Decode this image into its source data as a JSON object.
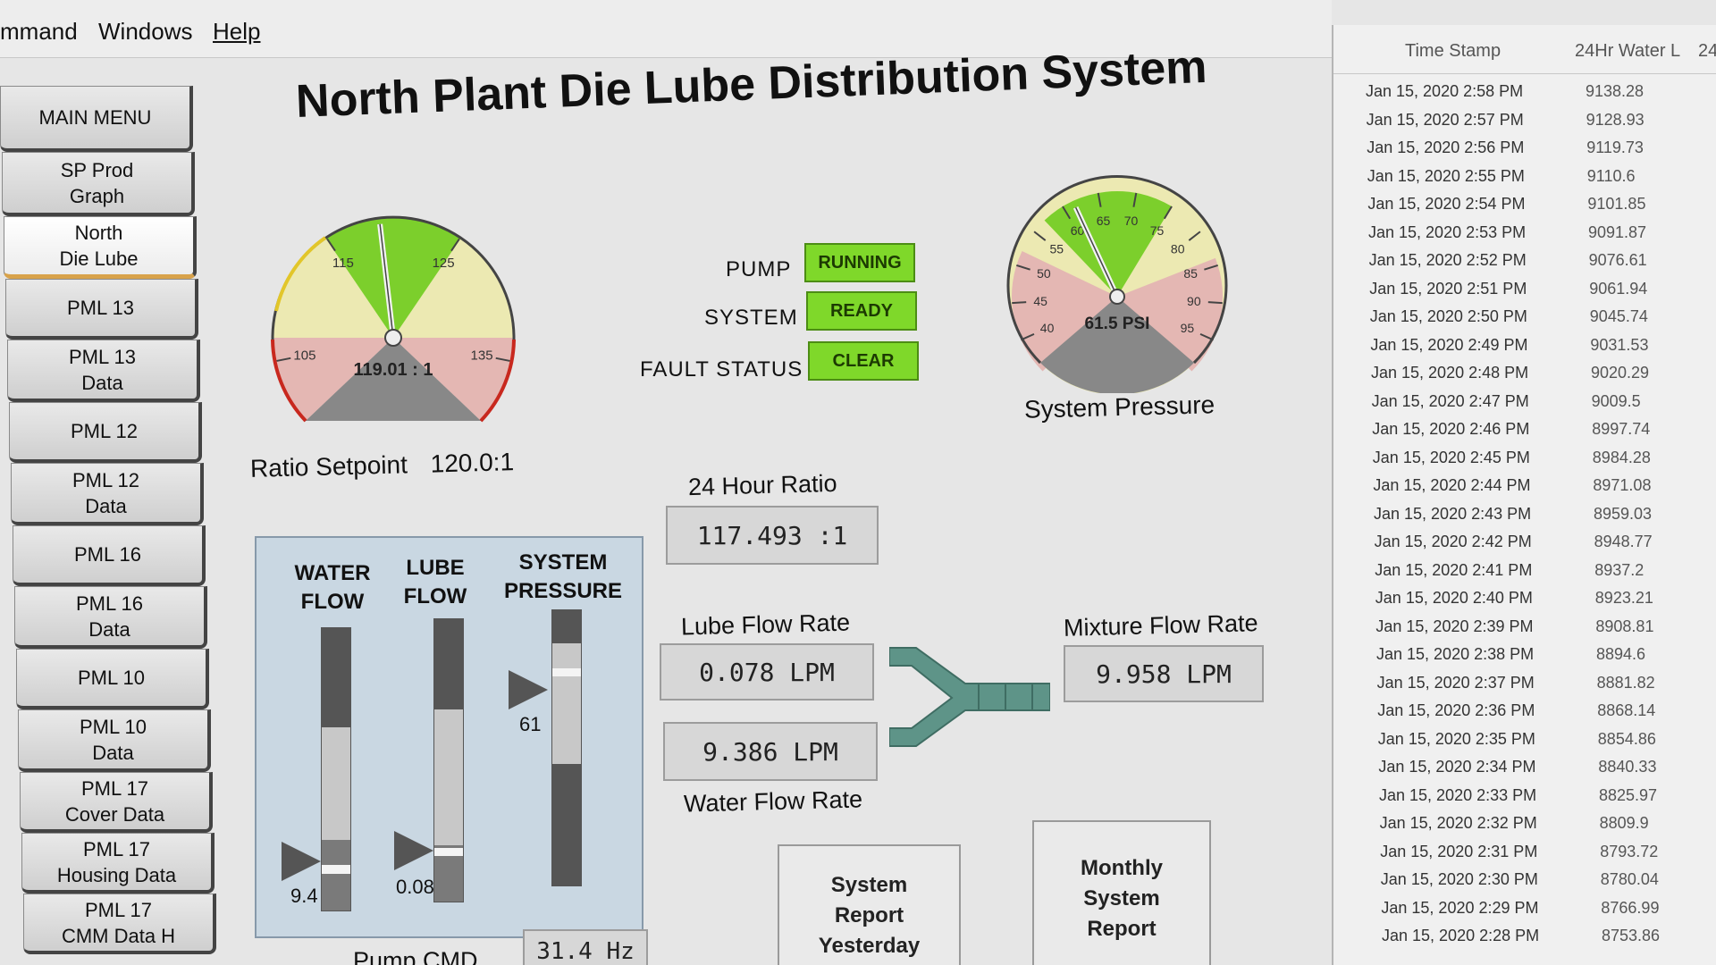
{
  "menu": {
    "command": "mmand",
    "windows": "Windows",
    "help": "Help"
  },
  "sidebar": {
    "items": [
      {
        "label": "MAIN MENU"
      },
      {
        "label": "SP Prod\nGraph"
      },
      {
        "label": "North\nDie Lube"
      },
      {
        "label": "PML 13"
      },
      {
        "label": "PML 13\nData"
      },
      {
        "label": "PML 12"
      },
      {
        "label": "PML 12\nData"
      },
      {
        "label": "PML 16"
      },
      {
        "label": "PML 16\nData"
      },
      {
        "label": "PML 10"
      },
      {
        "label": "PML 10\nData"
      },
      {
        "label": "PML 17\nCover Data"
      },
      {
        "label": "PML 17\nHousing Data"
      },
      {
        "label": "PML 17\nCMM Data H"
      }
    ],
    "active_index": 2
  },
  "header": {
    "title": "North Plant Die Lube Distribution System"
  },
  "ratio_gauge": {
    "min": 100,
    "max": 140,
    "value": 119.01,
    "readout": "119.01 : 1",
    "ticks": [
      "105",
      "115",
      "125",
      "135"
    ],
    "label": "Ratio Setpoint",
    "setpoint": "120.0:1"
  },
  "status": {
    "pump": {
      "label": "PUMP",
      "value": "RUNNING"
    },
    "system": {
      "label": "SYSTEM",
      "value": "READY"
    },
    "fault": {
      "label": "FAULT STATUS",
      "value": "CLEAR"
    },
    "color": "#7fd82a"
  },
  "pressure_gauge": {
    "min": 35,
    "max": 100,
    "value": 61.5,
    "readout": "61.5 PSI",
    "ticks": [
      "40",
      "45",
      "50",
      "55",
      "60",
      "65",
      "70",
      "75",
      "80",
      "85",
      "90",
      "95"
    ],
    "label": "System Pressure"
  },
  "ratio_24h": {
    "label": "24 Hour Ratio",
    "value": "117.493 :1"
  },
  "lube_flow": {
    "label": "Lube Flow Rate",
    "value": "0.078 LPM"
  },
  "water_flow": {
    "label": "Water Flow Rate",
    "value": "9.386 LPM"
  },
  "mixture_flow": {
    "label": "Mixture Flow Rate",
    "value": "9.958 LPM"
  },
  "bars": {
    "water": {
      "label": "WATER\nFLOW",
      "value": "9.4",
      "level": 0.15
    },
    "lube": {
      "label": "LUBE\nFLOW",
      "value": "0.08",
      "level": 0.18
    },
    "pressure": {
      "label": "SYSTEM\nPRESSURE",
      "value": "61",
      "level": 0.78
    }
  },
  "pump_cmd": {
    "label": "Pump CMD",
    "value": "31.4 Hz"
  },
  "reports": {
    "yesterday": "System\nReport\nYesterday",
    "monthly": "Monthly\nSystem\nReport"
  },
  "log": {
    "columns": [
      "Time Stamp",
      "24Hr Water L",
      "24"
    ],
    "rows": [
      {
        "ts": "Jan 15, 2020 2:58 PM",
        "water": "9138.28"
      },
      {
        "ts": "Jan 15, 2020 2:57 PM",
        "water": "9128.93"
      },
      {
        "ts": "Jan 15, 2020 2:56 PM",
        "water": "9119.73"
      },
      {
        "ts": "Jan 15, 2020 2:55 PM",
        "water": "9110.6"
      },
      {
        "ts": "Jan 15, 2020 2:54 PM",
        "water": "9101.85"
      },
      {
        "ts": "Jan 15, 2020 2:53 PM",
        "water": "9091.87"
      },
      {
        "ts": "Jan 15, 2020 2:52 PM",
        "water": "9076.61"
      },
      {
        "ts": "Jan 15, 2020 2:51 PM",
        "water": "9061.94"
      },
      {
        "ts": "Jan 15, 2020 2:50 PM",
        "water": "9045.74"
      },
      {
        "ts": "Jan 15, 2020 2:49 PM",
        "water": "9031.53"
      },
      {
        "ts": "Jan 15, 2020 2:48 PM",
        "water": "9020.29"
      },
      {
        "ts": "Jan 15, 2020 2:47 PM",
        "water": "9009.5"
      },
      {
        "ts": "Jan 15, 2020 2:46 PM",
        "water": "8997.74"
      },
      {
        "ts": "Jan 15, 2020 2:45 PM",
        "water": "8984.28"
      },
      {
        "ts": "Jan 15, 2020 2:44 PM",
        "water": "8971.08"
      },
      {
        "ts": "Jan 15, 2020 2:43 PM",
        "water": "8959.03"
      },
      {
        "ts": "Jan 15, 2020 2:42 PM",
        "water": "8948.77"
      },
      {
        "ts": "Jan 15, 2020 2:41 PM",
        "water": "8937.2"
      },
      {
        "ts": "Jan 15, 2020 2:40 PM",
        "water": "8923.21"
      },
      {
        "ts": "Jan 15, 2020 2:39 PM",
        "water": "8908.81"
      },
      {
        "ts": "Jan 15, 2020 2:38 PM",
        "water": "8894.6"
      },
      {
        "ts": "Jan 15, 2020 2:37 PM",
        "water": "8881.82"
      },
      {
        "ts": "Jan 15, 2020 2:36 PM",
        "water": "8868.14"
      },
      {
        "ts": "Jan 15, 2020 2:35 PM",
        "water": "8854.86"
      },
      {
        "ts": "Jan 15, 2020 2:34 PM",
        "water": "8840.33"
      },
      {
        "ts": "Jan 15, 2020 2:33 PM",
        "water": "8825.97"
      },
      {
        "ts": "Jan 15, 2020 2:32 PM",
        "water": "8809.9"
      },
      {
        "ts": "Jan 15, 2020 2:31 PM",
        "water": "8793.72"
      },
      {
        "ts": "Jan 15, 2020 2:30 PM",
        "water": "8780.04"
      },
      {
        "ts": "Jan 15, 2020 2:29 PM",
        "water": "8766.99"
      },
      {
        "ts": "Jan 15, 2020 2:28 PM",
        "water": "8753.86"
      }
    ]
  },
  "colors": {
    "gauge_green": "#7ccf2c",
    "gauge_yellow": "#ece9b2",
    "gauge_red": "#e4b7b3",
    "pipe": "#5e9488",
    "active_nav": "#d8a24a"
  }
}
